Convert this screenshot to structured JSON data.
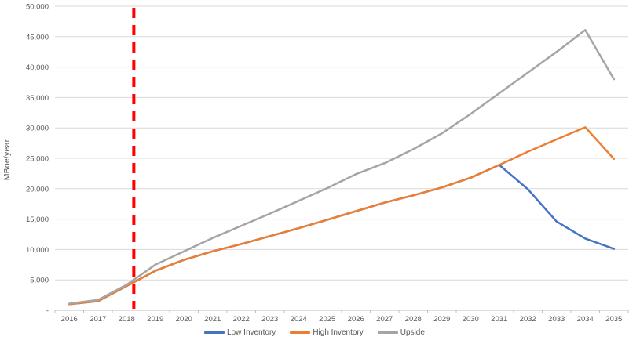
{
  "chart_data": {
    "type": "line",
    "title": "",
    "xlabel": "",
    "ylabel": "MBoe/year",
    "ylim": [
      0,
      50000
    ],
    "ytick_interval": 5000,
    "ytick_labels": [
      "-",
      "5,000",
      "10,000",
      "15,000",
      "20,000",
      "25,000",
      "30,000",
      "35,000",
      "40,000",
      "45,000",
      "50,000"
    ],
    "categories": [
      "2016",
      "2017",
      "2018",
      "2019",
      "2020",
      "2021",
      "2022",
      "2023",
      "2024",
      "2025",
      "2026",
      "2027",
      "2028",
      "2029",
      "2030",
      "2031",
      "2032",
      "2033",
      "2034",
      "2035"
    ],
    "series": [
      {
        "name": "Low Inventory",
        "color": "#4472C4",
        "values": [
          1000,
          1500,
          4000,
          6500,
          8300,
          9700,
          10900,
          12200,
          13500,
          14900,
          16300,
          17700,
          18900,
          20200,
          21800,
          23900,
          19900,
          14600,
          11800,
          10100
        ]
      },
      {
        "name": "High Inventory",
        "color": "#ED7D31",
        "values": [
          1000,
          1500,
          4000,
          6500,
          8300,
          9700,
          10900,
          12200,
          13500,
          14900,
          16300,
          17700,
          18900,
          20200,
          21800,
          23900,
          26100,
          28100,
          30100,
          24900
        ]
      },
      {
        "name": "Upside",
        "color": "#A5A5A5",
        "values": [
          1100,
          1700,
          4200,
          7500,
          9700,
          11900,
          13900,
          15900,
          18000,
          20100,
          22400,
          24200,
          26500,
          29100,
          32300,
          35700,
          39100,
          42500,
          46100,
          38000
        ]
      }
    ],
    "annotation": {
      "type": "vertical-dashed-line",
      "x_category_index": 2.25,
      "label": "",
      "color": "#FF0000"
    },
    "legend_position": "bottom",
    "grid": "horizontal",
    "colors": {
      "gridline": "#D9D9D9",
      "axis_line": "#BFBFBF",
      "tick_text": "#595959",
      "background": "#FFFFFF"
    }
  }
}
